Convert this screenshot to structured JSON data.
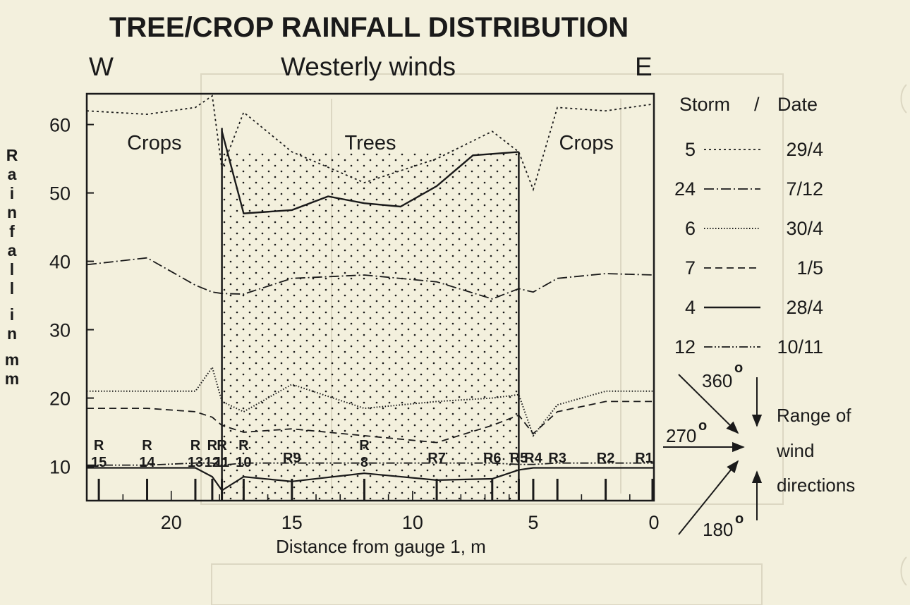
{
  "chart_data": {
    "type": "line",
    "title": "TREE/CROP RAINFALL DISTRIBUTION",
    "subtitle": "Westerly winds",
    "west_label": "W",
    "east_label": "E",
    "xlabel": "Distance from gauge 1, m",
    "ylabel": "Rainfall in mm",
    "xlim": [
      23.5,
      0
    ],
    "ylim": [
      5,
      64.5
    ],
    "x_ticks": [
      20,
      15,
      10,
      5,
      0
    ],
    "y_ticks": [
      10,
      20,
      30,
      40,
      50,
      60
    ],
    "grid": false,
    "legend_title_storm": "Storm",
    "legend_title_sep": "/",
    "legend_title_date": "Date",
    "legend_position": "right",
    "regions": [
      {
        "label": "Crops",
        "x_from": 23.5,
        "x_to": 17.9
      },
      {
        "label": "Trees",
        "x_from": 17.9,
        "x_to": 5.6
      },
      {
        "label": "Crops",
        "x_from": 5.6,
        "x_to": 0
      }
    ],
    "gauges": [
      {
        "label": "R 15",
        "x": 23.0
      },
      {
        "label": "R 14",
        "x": 21.0
      },
      {
        "label": "R 13",
        "x": 19.0
      },
      {
        "label": "R 12",
        "x": 18.3
      },
      {
        "label": "R 11",
        "x": 17.9
      },
      {
        "label": "R 10",
        "x": 17.0
      },
      {
        "label": "R9",
        "x": 15.0
      },
      {
        "label": "R 8",
        "x": 12.0
      },
      {
        "label": "R7",
        "x": 9.0
      },
      {
        "label": "R6",
        "x": 6.7
      },
      {
        "label": "R5",
        "x": 5.6
      },
      {
        "label": "R4",
        "x": 5.0
      },
      {
        "label": "R3",
        "x": 4.0
      },
      {
        "label": "R2",
        "x": 2.0
      },
      {
        "label": "R1",
        "x": 0.0
      }
    ],
    "series": [
      {
        "name": "5",
        "date": "29/4",
        "style": "dotted",
        "x": [
          23.5,
          21,
          19,
          18.3,
          17.9,
          17,
          15,
          12,
          9,
          6.7,
          5.6,
          5,
          4,
          2,
          0
        ],
        "y": [
          62,
          61.5,
          62.5,
          64.2,
          53.5,
          61.8,
          56,
          51.5,
          55,
          59,
          56,
          50.5,
          62.5,
          62,
          63
        ]
      },
      {
        "name": "24",
        "date": "7/12",
        "style": "dashdot",
        "x": [
          23.5,
          21,
          19,
          18.3,
          17.9,
          17,
          15,
          12,
          9,
          6.7,
          5.6,
          5,
          4,
          2,
          0
        ],
        "y": [
          39.5,
          40.5,
          36.5,
          35.5,
          35.3,
          35.2,
          37.5,
          38,
          37,
          34.5,
          36,
          35.5,
          37.5,
          38.2,
          38
        ]
      },
      {
        "name": "6",
        "date": "30/4",
        "style": "finedot",
        "x": [
          23.5,
          21,
          19,
          18.3,
          17.9,
          17,
          15,
          12,
          9,
          6.7,
          5.6,
          5,
          4,
          2,
          0
        ],
        "y": [
          21,
          21,
          21,
          24.5,
          19.5,
          18,
          22,
          18.5,
          19.5,
          20,
          20.5,
          14.5,
          19,
          21,
          21
        ]
      },
      {
        "name": "7",
        "date": "1/5",
        "style": "dashed",
        "x": [
          23.5,
          21,
          19,
          18.3,
          17.9,
          17,
          15,
          12,
          9,
          6.7,
          5.6,
          5,
          4,
          2,
          0
        ],
        "y": [
          18.5,
          18.5,
          18,
          17.2,
          16,
          15,
          15.5,
          14.5,
          13.5,
          16,
          17.5,
          14.8,
          18,
          19.5,
          19.5
        ]
      },
      {
        "name": "4",
        "date": "28/4",
        "style": "solid",
        "x": [
          17.9,
          17,
          15,
          13.5,
          12,
          10.5,
          9,
          7.5,
          5.6
        ],
        "y": [
          59,
          47,
          47.5,
          49.5,
          48.5,
          48,
          51,
          55.5,
          56
        ]
      },
      {
        "name": "12",
        "date": "10/11",
        "style": "dashdotdot",
        "x": [
          23.5,
          21,
          19,
          18.3,
          17.9,
          17,
          15,
          12,
          9,
          6.7,
          5.6,
          5,
          4,
          2,
          0
        ],
        "y": [
          10.2,
          10.2,
          10.5,
          10.5,
          10.2,
          10.5,
          10.5,
          10.5,
          10.5,
          10.5,
          10.3,
          10.3,
          10.5,
          10.5,
          10.5
        ]
      }
    ],
    "lower_line": {
      "x": [
        23.5,
        21,
        19,
        18.3,
        17.9,
        17,
        15,
        12,
        9,
        6.7,
        5.6,
        5,
        4,
        2,
        0
      ],
      "y": [
        9.8,
        9.8,
        9.8,
        8.5,
        6.5,
        8.5,
        7.8,
        9,
        8,
        8.2,
        9.5,
        9.8,
        9.8,
        9.8,
        9.8
      ]
    },
    "wind": {
      "label_360": "360",
      "label_270": "270",
      "label_180": "180",
      "degree_symbol": "o",
      "caption_1": "Range of",
      "caption_2": "wind",
      "caption_3": "directions"
    }
  },
  "colors": {
    "paper": "#f3f0dd",
    "ink": "#1a1a1a",
    "ghost": "#d8d3bd"
  }
}
